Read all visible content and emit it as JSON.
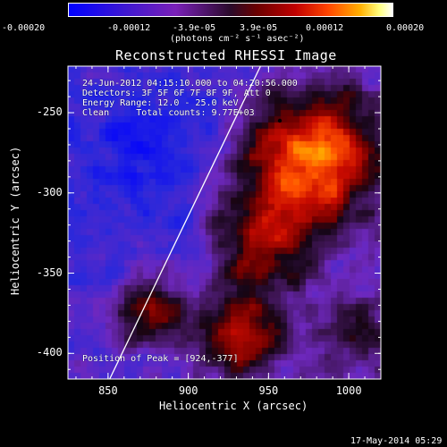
{
  "colorbar": {
    "ticks": [
      "-0.00020",
      "-0.00012",
      "-3.9e-05",
      "3.9e-05",
      "0.00012",
      "0.00020"
    ],
    "units": "(photons cm⁻² s⁻¹ asec⁻²)"
  },
  "title": "Reconstructed RHESSI Image",
  "info": {
    "time_range": "24-Jun-2012 04:15:10.000 to 04:20:56.000",
    "detectors": "Detectors: 3F 5F 6F 7F 8F 9F, Att 0",
    "energy": "Energy Range: 12.0 - 25.0 keV",
    "clean": "Clean     Total counts: 9.77E+03",
    "peak": "Position of Peak = [924,-377]"
  },
  "axes": {
    "xlabel": "Heliocentric X (arcsec)",
    "ylabel": "Heliocentric Y (arcsec)",
    "xticks": [
      "850",
      "900",
      "950",
      "1000"
    ],
    "yticks": [
      "-250",
      "-300",
      "-350",
      "-400"
    ],
    "xrange": [
      825,
      1020
    ],
    "yrange": [
      -416,
      -221
    ],
    "xtick_values": [
      850,
      900,
      950,
      1000
    ],
    "ytick_values": [
      -250,
      -300,
      -350,
      -400
    ]
  },
  "limb_line": {
    "x_start": 851,
    "y_start": -416,
    "x_end": 945,
    "y_end": -221
  },
  "colors": {
    "background": "#000000",
    "text": "#ffffff"
  },
  "footer": "17-May-2014 05:29"
}
